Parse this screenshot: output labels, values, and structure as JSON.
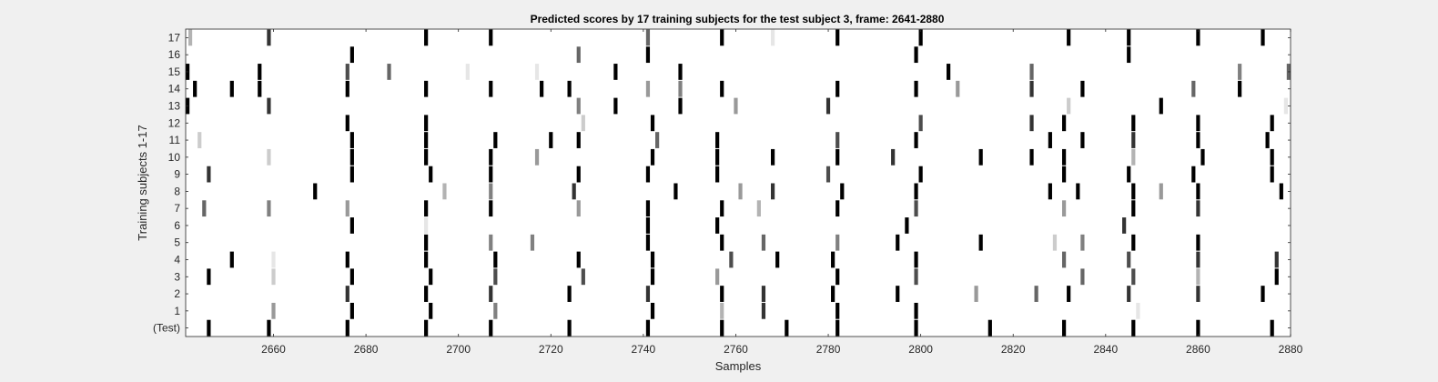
{
  "chart_data": {
    "type": "heatmap",
    "title": "Predicted scores by 17 training subjects for the test subject 3, frame: 2641-2880",
    "xlabel": "Samples",
    "ylabel": "Training subjects 1-17",
    "xlim": [
      2641,
      2880
    ],
    "x_ticks": [
      2660,
      2680,
      2700,
      2720,
      2740,
      2760,
      2780,
      2800,
      2820,
      2840,
      2860,
      2880
    ],
    "row_labels": [
      "(Test)",
      "1",
      "2",
      "3",
      "4",
      "5",
      "6",
      "7",
      "8",
      "9",
      "10",
      "11",
      "12",
      "13",
      "14",
      "15",
      "16",
      "17"
    ],
    "colormap": "white = 0 (no score), black = 1 (highest score)",
    "rows": [
      {
        "label": "(Test)",
        "marks": [
          [
            2646,
            1
          ],
          [
            2659,
            1
          ],
          [
            2676,
            1
          ],
          [
            2693,
            1
          ],
          [
            2707,
            1
          ],
          [
            2724,
            1
          ],
          [
            2741,
            1
          ],
          [
            2757,
            1
          ],
          [
            2771,
            1
          ],
          [
            2782,
            1
          ],
          [
            2799,
            1
          ],
          [
            2815,
            1
          ],
          [
            2831,
            1
          ],
          [
            2846,
            1
          ],
          [
            2860,
            1
          ],
          [
            2876,
            1
          ]
        ]
      },
      {
        "label": "1",
        "marks": [
          [
            2660,
            0.4
          ],
          [
            2677,
            1
          ],
          [
            2694,
            1
          ],
          [
            2708,
            0.5
          ],
          [
            2742,
            1
          ],
          [
            2757,
            0.3
          ],
          [
            2766,
            0.8
          ],
          [
            2782,
            1
          ],
          [
            2799,
            1
          ],
          [
            2847,
            0.1
          ]
        ]
      },
      {
        "label": "2",
        "marks": [
          [
            2676,
            0.8
          ],
          [
            2693,
            1
          ],
          [
            2707,
            0.8
          ],
          [
            2724,
            1
          ],
          [
            2741,
            0.8
          ],
          [
            2757,
            1
          ],
          [
            2766,
            0.8
          ],
          [
            2781,
            1
          ],
          [
            2795,
            1
          ],
          [
            2812,
            0.4
          ],
          [
            2825,
            0.6
          ],
          [
            2832,
            1
          ],
          [
            2845,
            0.8
          ],
          [
            2860,
            0.8
          ],
          [
            2874,
            1
          ]
        ]
      },
      {
        "label": "3",
        "marks": [
          [
            2646,
            1
          ],
          [
            2660,
            0.2
          ],
          [
            2677,
            1
          ],
          [
            2694,
            1
          ],
          [
            2708,
            0.7
          ],
          [
            2727,
            0.7
          ],
          [
            2742,
            1
          ],
          [
            2756,
            0.4
          ],
          [
            2782,
            1
          ],
          [
            2799,
            0.7
          ],
          [
            2835,
            0.6
          ],
          [
            2846,
            0.7
          ],
          [
            2860,
            0.3
          ],
          [
            2877,
            1
          ]
        ]
      },
      {
        "label": "4",
        "marks": [
          [
            2651,
            1
          ],
          [
            2660,
            0.1
          ],
          [
            2676,
            1
          ],
          [
            2693,
            1
          ],
          [
            2708,
            1
          ],
          [
            2726,
            1
          ],
          [
            2742,
            1
          ],
          [
            2759,
            0.7
          ],
          [
            2769,
            1
          ],
          [
            2781,
            1
          ],
          [
            2799,
            1
          ],
          [
            2831,
            0.6
          ],
          [
            2845,
            0.7
          ],
          [
            2860,
            0.8
          ],
          [
            2877,
            0.8
          ]
        ]
      },
      {
        "label": "5",
        "marks": [
          [
            2693,
            1
          ],
          [
            2707,
            0.5
          ],
          [
            2716,
            0.5
          ],
          [
            2741,
            1
          ],
          [
            2757,
            1
          ],
          [
            2766,
            0.6
          ],
          [
            2782,
            0.5
          ],
          [
            2795,
            1
          ],
          [
            2813,
            1
          ],
          [
            2829,
            0.2
          ],
          [
            2835,
            0.5
          ],
          [
            2846,
            1
          ],
          [
            2860,
            1
          ]
        ]
      },
      {
        "label": "6",
        "marks": [
          [
            2677,
            1
          ],
          [
            2693,
            0.1
          ],
          [
            2741,
            1
          ],
          [
            2756,
            1
          ],
          [
            2797,
            1
          ],
          [
            2844,
            0.8
          ]
        ]
      },
      {
        "label": "7",
        "marks": [
          [
            2645,
            0.6
          ],
          [
            2659,
            0.5
          ],
          [
            2676,
            0.4
          ],
          [
            2693,
            1
          ],
          [
            2707,
            1
          ],
          [
            2726,
            0.4
          ],
          [
            2741,
            1
          ],
          [
            2757,
            1
          ],
          [
            2765,
            0.3
          ],
          [
            2782,
            1
          ],
          [
            2799,
            0.7
          ],
          [
            2831,
            0.4
          ],
          [
            2846,
            1
          ],
          [
            2860,
            0.8
          ]
        ]
      },
      {
        "label": "8",
        "marks": [
          [
            2669,
            1
          ],
          [
            2697,
            0.3
          ],
          [
            2707,
            0.5
          ],
          [
            2725,
            0.8
          ],
          [
            2747,
            1
          ],
          [
            2761,
            0.4
          ],
          [
            2768,
            0.8
          ],
          [
            2783,
            1
          ],
          [
            2799,
            1
          ],
          [
            2828,
            1
          ],
          [
            2834,
            1
          ],
          [
            2846,
            1
          ],
          [
            2852,
            0.4
          ],
          [
            2860,
            1
          ],
          [
            2878,
            1
          ]
        ]
      },
      {
        "label": "9",
        "marks": [
          [
            2646,
            0.8
          ],
          [
            2677,
            1
          ],
          [
            2694,
            1
          ],
          [
            2707,
            1
          ],
          [
            2726,
            1
          ],
          [
            2741,
            1
          ],
          [
            2756,
            1
          ],
          [
            2780,
            0.7
          ],
          [
            2800,
            1
          ],
          [
            2831,
            1
          ],
          [
            2845,
            1
          ],
          [
            2859,
            1
          ],
          [
            2876,
            1
          ]
        ]
      },
      {
        "label": "10",
        "marks": [
          [
            2659,
            0.2
          ],
          [
            2677,
            1
          ],
          [
            2693,
            1
          ],
          [
            2707,
            1
          ],
          [
            2717,
            0.4
          ],
          [
            2742,
            1
          ],
          [
            2756,
            1
          ],
          [
            2768,
            1
          ],
          [
            2782,
            1
          ],
          [
            2794,
            0.8
          ],
          [
            2813,
            1
          ],
          [
            2824,
            1
          ],
          [
            2831,
            1
          ],
          [
            2846,
            0.3
          ],
          [
            2861,
            1
          ],
          [
            2876,
            1
          ]
        ]
      },
      {
        "label": "11",
        "marks": [
          [
            2644,
            0.2
          ],
          [
            2677,
            1
          ],
          [
            2693,
            1
          ],
          [
            2708,
            1
          ],
          [
            2720,
            1
          ],
          [
            2726,
            1
          ],
          [
            2743,
            0.6
          ],
          [
            2756,
            1
          ],
          [
            2782,
            0.7
          ],
          [
            2799,
            1
          ],
          [
            2828,
            1
          ],
          [
            2835,
            1
          ],
          [
            2846,
            0.8
          ],
          [
            2860,
            1
          ],
          [
            2875,
            1
          ]
        ]
      },
      {
        "label": "12",
        "marks": [
          [
            2676,
            1
          ],
          [
            2693,
            1
          ],
          [
            2727,
            0.2
          ],
          [
            2742,
            1
          ],
          [
            2800,
            0.7
          ],
          [
            2824,
            0.8
          ],
          [
            2831,
            1
          ],
          [
            2846,
            1
          ],
          [
            2860,
            1
          ],
          [
            2876,
            1
          ]
        ]
      },
      {
        "label": "13",
        "marks": [
          [
            2641,
            1
          ],
          [
            2659,
            0.8
          ],
          [
            2726,
            0.5
          ],
          [
            2734,
            1
          ],
          [
            2748,
            1
          ],
          [
            2760,
            0.4
          ],
          [
            2780,
            0.8
          ],
          [
            2832,
            0.2
          ],
          [
            2852,
            1
          ],
          [
            2879,
            0.1
          ]
        ]
      },
      {
        "label": "14",
        "marks": [
          [
            2643,
            1
          ],
          [
            2651,
            1
          ],
          [
            2657,
            1
          ],
          [
            2676,
            1
          ],
          [
            2693,
            1
          ],
          [
            2707,
            1
          ],
          [
            2718,
            1
          ],
          [
            2724,
            1
          ],
          [
            2741,
            0.4
          ],
          [
            2748,
            0.5
          ],
          [
            2757,
            1
          ],
          [
            2782,
            1
          ],
          [
            2799,
            1
          ],
          [
            2808,
            0.4
          ],
          [
            2824,
            0.8
          ],
          [
            2835,
            1
          ],
          [
            2859,
            0.6
          ],
          [
            2869,
            1
          ]
        ]
      },
      {
        "label": "15",
        "marks": [
          [
            2641,
            1
          ],
          [
            2657,
            1
          ],
          [
            2676,
            0.7
          ],
          [
            2685,
            0.6
          ],
          [
            2702,
            0.1
          ],
          [
            2717,
            0.1
          ],
          [
            2734,
            1
          ],
          [
            2748,
            1
          ],
          [
            2806,
            1
          ],
          [
            2824,
            0.6
          ],
          [
            2869,
            0.5
          ],
          [
            2880,
            0.6
          ]
        ]
      },
      {
        "label": "16",
        "marks": [
          [
            2677,
            1
          ],
          [
            2726,
            0.6
          ],
          [
            2741,
            1
          ],
          [
            2799,
            1
          ],
          [
            2845,
            1
          ]
        ]
      },
      {
        "label": "17",
        "marks": [
          [
            2642,
            0.3
          ],
          [
            2659,
            0.8
          ],
          [
            2693,
            1
          ],
          [
            2707,
            1
          ],
          [
            2741,
            0.6
          ],
          [
            2757,
            1
          ],
          [
            2768,
            0.1
          ],
          [
            2782,
            1
          ],
          [
            2800,
            1
          ],
          [
            2832,
            1
          ],
          [
            2845,
            1
          ],
          [
            2860,
            1
          ],
          [
            2874,
            1
          ]
        ]
      }
    ]
  }
}
